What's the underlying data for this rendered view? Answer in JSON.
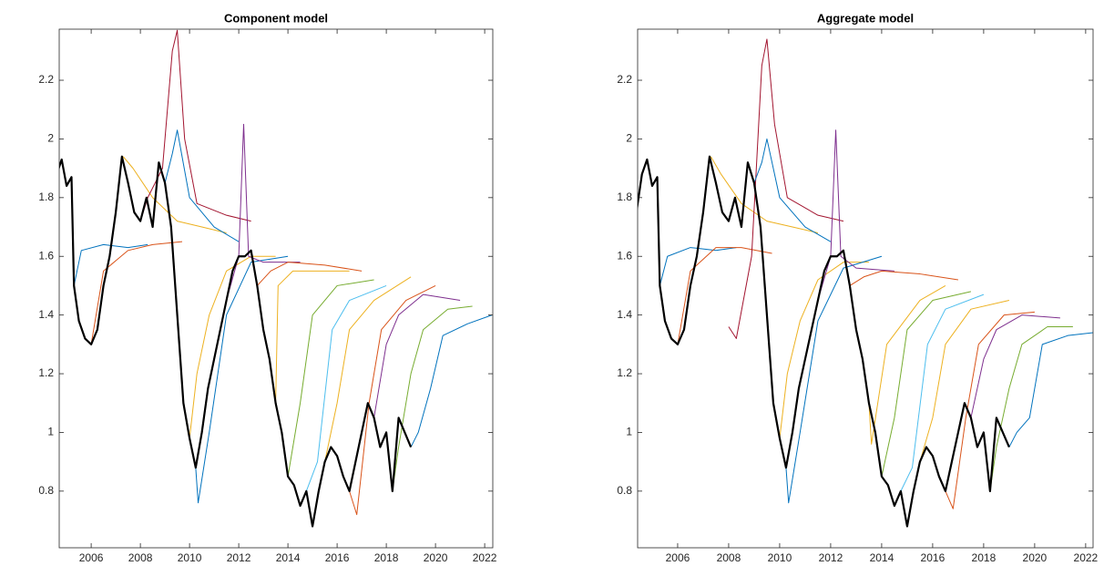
{
  "chart_data": [
    {
      "type": "line",
      "title": "Component model",
      "xlim": [
        2004.7,
        2022.33
      ],
      "ylim": [
        0.607,
        2.374
      ],
      "xticks": [
        2006,
        2008,
        2010,
        2012,
        2014,
        2016,
        2018,
        2020,
        2022
      ],
      "yticks": [
        0.8,
        1,
        1.2,
        1.4,
        1.6,
        1.8,
        2,
        2.2
      ],
      "series": [
        {
          "color": "#0072BD",
          "x": [
            2005.3,
            2005.6,
            2006.5,
            2007.5,
            2008.3
          ],
          "values": [
            1.5,
            1.62,
            1.64,
            1.63,
            1.64
          ]
        },
        {
          "color": "#D95319",
          "x": [
            2006.0,
            2006.5,
            2007.5,
            2008.5,
            2009.7
          ],
          "values": [
            1.3,
            1.55,
            1.62,
            1.64,
            1.65
          ]
        },
        {
          "color": "#EDB120",
          "x": [
            2007.3,
            2007.7,
            2008.5,
            2009.5,
            2010.5,
            2011.5
          ],
          "values": [
            1.94,
            1.9,
            1.8,
            1.72,
            1.7,
            1.68
          ]
        },
        {
          "color": "#A2142F",
          "x": [
            2008.0,
            2008.3,
            2008.9,
            2009.3,
            2009.5,
            2009.8,
            2010.3,
            2011.5,
            2012.5
          ],
          "values": [
            1.72,
            1.8,
            1.9,
            2.3,
            2.37,
            2.0,
            1.78,
            1.74,
            1.72
          ]
        },
        {
          "color": "#0072BD",
          "x": [
            2009.0,
            2009.3,
            2009.5,
            2010.0,
            2011.0,
            2012.0
          ],
          "values": [
            1.85,
            1.95,
            2.03,
            1.8,
            1.7,
            1.65
          ]
        },
        {
          "color": "#EDB120",
          "x": [
            2010.0,
            2010.3,
            2010.8,
            2011.5,
            2012.5,
            2013.5
          ],
          "values": [
            0.98,
            1.2,
            1.4,
            1.55,
            1.6,
            1.6
          ]
        },
        {
          "color": "#0072BD",
          "x": [
            2010.25,
            2010.35,
            2010.8,
            2011.5,
            2012.5,
            2014.0
          ],
          "values": [
            0.88,
            0.76,
            1.0,
            1.4,
            1.58,
            1.6
          ]
        },
        {
          "color": "#7E2F8E",
          "x": [
            2011.5,
            2012.0,
            2012.2,
            2012.4,
            2013.0,
            2014.5
          ],
          "values": [
            1.45,
            1.6,
            2.05,
            1.6,
            1.58,
            1.58
          ]
        },
        {
          "color": "#D95319",
          "x": [
            2012.75,
            2013.3,
            2014.0,
            2015.5,
            2017.0
          ],
          "values": [
            1.5,
            1.55,
            1.58,
            1.57,
            1.55
          ]
        },
        {
          "color": "#EDB120",
          "x": [
            2013.5,
            2013.6,
            2014.2,
            2015.5,
            2016.5
          ],
          "values": [
            1.1,
            1.5,
            1.55,
            1.55,
            1.55
          ]
        },
        {
          "color": "#77AC30",
          "x": [
            2014.0,
            2014.5,
            2015.0,
            2016.0,
            2017.5
          ],
          "values": [
            0.85,
            1.1,
            1.4,
            1.5,
            1.52
          ]
        },
        {
          "color": "#4DBEEE",
          "x": [
            2014.75,
            2015.2,
            2015.8,
            2016.5,
            2018.0
          ],
          "values": [
            0.8,
            0.9,
            1.35,
            1.45,
            1.5
          ]
        },
        {
          "color": "#EDB120",
          "x": [
            2015.5,
            2016.0,
            2016.5,
            2017.5,
            2019.0
          ],
          "values": [
            0.9,
            1.1,
            1.35,
            1.45,
            1.53
          ]
        },
        {
          "color": "#D95319",
          "x": [
            2016.5,
            2016.8,
            2017.3,
            2017.8,
            2018.8,
            2020.0
          ],
          "values": [
            0.8,
            0.72,
            1.1,
            1.35,
            1.45,
            1.5
          ]
        },
        {
          "color": "#7E2F8E",
          "x": [
            2017.5,
            2018.0,
            2018.5,
            2019.5,
            2021.0
          ],
          "values": [
            1.05,
            1.3,
            1.4,
            1.47,
            1.45
          ]
        },
        {
          "color": "#77AC30",
          "x": [
            2018.25,
            2018.5,
            2019.0,
            2019.5,
            2020.5,
            2021.5
          ],
          "values": [
            0.8,
            0.95,
            1.2,
            1.35,
            1.42,
            1.43
          ]
        },
        {
          "color": "#0072BD",
          "x": [
            2019.0,
            2019.3,
            2019.8,
            2020.3,
            2021.3,
            2022.3
          ],
          "values": [
            0.95,
            1.0,
            1.15,
            1.33,
            1.37,
            1.4
          ]
        },
        {
          "color": "#000000",
          "x": [
            2004.3,
            2004.4,
            2004.6,
            2004.8,
            2005.0,
            2005.2,
            2005.3,
            2005.5,
            2005.75,
            2006.0,
            2006.25,
            2006.5,
            2006.75,
            2007.0,
            2007.25,
            2007.5,
            2007.75,
            2008.0,
            2008.25,
            2008.5,
            2008.75,
            2009.0,
            2009.25,
            2009.5,
            2009.75,
            2010.0,
            2010.25,
            2010.5,
            2010.75,
            2011.0,
            2011.25,
            2011.5,
            2011.75,
            2012.0,
            2012.25,
            2012.5,
            2012.75,
            2013.0,
            2013.25,
            2013.5,
            2013.75,
            2014.0,
            2014.25,
            2014.5,
            2014.75,
            2015.0,
            2015.25,
            2015.5,
            2015.75,
            2016.0,
            2016.25,
            2016.5,
            2016.75,
            2017.0,
            2017.25,
            2017.5,
            2017.75,
            2018.0,
            2018.25,
            2018.5,
            2018.75,
            2019.0
          ],
          "values": [
            1.86,
            1.76,
            1.88,
            1.93,
            1.84,
            1.87,
            1.5,
            1.38,
            1.32,
            1.3,
            1.35,
            1.5,
            1.6,
            1.75,
            1.94,
            1.85,
            1.75,
            1.72,
            1.8,
            1.7,
            1.92,
            1.85,
            1.7,
            1.4,
            1.1,
            0.98,
            0.88,
            1.0,
            1.15,
            1.25,
            1.35,
            1.45,
            1.55,
            1.6,
            1.6,
            1.62,
            1.5,
            1.35,
            1.25,
            1.1,
            1.0,
            0.85,
            0.82,
            0.75,
            0.8,
            0.68,
            0.8,
            0.9,
            0.95,
            0.92,
            0.85,
            0.8,
            0.9,
            1.0,
            1.1,
            1.05,
            0.95,
            1.0,
            0.8,
            1.05,
            1.0,
            0.95
          ]
        }
      ]
    },
    {
      "type": "line",
      "title": "Aggregate model",
      "xlim": [
        2004.43,
        2022.29
      ],
      "ylim": [
        0.607,
        2.374
      ],
      "xticks": [
        2006,
        2008,
        2010,
        2012,
        2014,
        2016,
        2018,
        2020,
        2022
      ],
      "yticks": [
        0.8,
        1,
        1.2,
        1.4,
        1.6,
        1.8,
        2,
        2.2
      ],
      "series": [
        {
          "color": "#0072BD",
          "x": [
            2005.3,
            2005.6,
            2006.5,
            2007.5,
            2008.3
          ],
          "values": [
            1.5,
            1.6,
            1.63,
            1.62,
            1.63
          ]
        },
        {
          "color": "#D95319",
          "x": [
            2006.0,
            2006.5,
            2007.5,
            2008.5,
            2009.7
          ],
          "values": [
            1.3,
            1.55,
            1.63,
            1.63,
            1.61
          ]
        },
        {
          "color": "#EDB120",
          "x": [
            2007.3,
            2007.7,
            2008.5,
            2009.5,
            2010.5,
            2011.5
          ],
          "values": [
            1.94,
            1.88,
            1.78,
            1.72,
            1.7,
            1.68
          ]
        },
        {
          "color": "#A2142F",
          "x": [
            2008.0,
            2008.3,
            2008.9,
            2009.3,
            2009.5,
            2009.8,
            2010.3,
            2011.5,
            2012.5
          ],
          "values": [
            1.36,
            1.32,
            1.6,
            2.25,
            2.34,
            2.05,
            1.8,
            1.74,
            1.72
          ]
        },
        {
          "color": "#0072BD",
          "x": [
            2009.0,
            2009.3,
            2009.5,
            2010.0,
            2011.0,
            2012.0
          ],
          "values": [
            1.85,
            1.92,
            2.0,
            1.8,
            1.7,
            1.65
          ]
        },
        {
          "color": "#EDB120",
          "x": [
            2010.0,
            2010.3,
            2010.8,
            2011.5,
            2012.5,
            2013.5
          ],
          "values": [
            0.98,
            1.2,
            1.38,
            1.52,
            1.58,
            1.58
          ]
        },
        {
          "color": "#0072BD",
          "x": [
            2010.25,
            2010.35,
            2010.8,
            2011.5,
            2012.5,
            2014.0
          ],
          "values": [
            0.88,
            0.76,
            1.0,
            1.38,
            1.56,
            1.6
          ]
        },
        {
          "color": "#7E2F8E",
          "x": [
            2011.5,
            2012.0,
            2012.2,
            2012.4,
            2013.0,
            2014.5
          ],
          "values": [
            1.45,
            1.6,
            2.03,
            1.6,
            1.56,
            1.55
          ]
        },
        {
          "color": "#D95319",
          "x": [
            2012.75,
            2013.3,
            2014.0,
            2015.5,
            2017.0
          ],
          "values": [
            1.5,
            1.53,
            1.55,
            1.54,
            1.52
          ]
        },
        {
          "color": "#EDB120",
          "x": [
            2013.5,
            2013.6,
            2014.2,
            2015.5,
            2016.5
          ],
          "values": [
            1.1,
            0.96,
            1.3,
            1.45,
            1.5
          ]
        },
        {
          "color": "#77AC30",
          "x": [
            2014.0,
            2014.5,
            2015.0,
            2016.0,
            2017.5
          ],
          "values": [
            0.85,
            1.05,
            1.35,
            1.45,
            1.48
          ]
        },
        {
          "color": "#4DBEEE",
          "x": [
            2014.75,
            2015.2,
            2015.8,
            2016.5,
            2018.0
          ],
          "values": [
            0.8,
            0.88,
            1.3,
            1.42,
            1.47
          ]
        },
        {
          "color": "#EDB120",
          "x": [
            2015.5,
            2016.0,
            2016.5,
            2017.5,
            2019.0
          ],
          "values": [
            0.9,
            1.05,
            1.3,
            1.42,
            1.45
          ]
        },
        {
          "color": "#D95319",
          "x": [
            2016.5,
            2016.8,
            2017.3,
            2017.8,
            2018.8,
            2020.0
          ],
          "values": [
            0.8,
            0.74,
            1.05,
            1.3,
            1.4,
            1.41
          ]
        },
        {
          "color": "#7E2F8E",
          "x": [
            2017.5,
            2018.0,
            2018.5,
            2019.5,
            2021.0
          ],
          "values": [
            1.05,
            1.25,
            1.35,
            1.4,
            1.39
          ]
        },
        {
          "color": "#77AC30",
          "x": [
            2018.25,
            2018.5,
            2019.0,
            2019.5,
            2020.5,
            2021.5
          ],
          "values": [
            0.8,
            0.95,
            1.15,
            1.3,
            1.36,
            1.36
          ]
        },
        {
          "color": "#0072BD",
          "x": [
            2019.0,
            2019.3,
            2019.8,
            2020.3,
            2021.3,
            2022.3
          ],
          "values": [
            0.95,
            1.0,
            1.05,
            1.3,
            1.33,
            1.34
          ]
        },
        {
          "color": "#000000",
          "x": [
            2004.3,
            2004.4,
            2004.6,
            2004.8,
            2005.0,
            2005.2,
            2005.3,
            2005.5,
            2005.75,
            2006.0,
            2006.25,
            2006.5,
            2006.75,
            2007.0,
            2007.25,
            2007.5,
            2007.75,
            2008.0,
            2008.25,
            2008.5,
            2008.75,
            2009.0,
            2009.25,
            2009.5,
            2009.75,
            2010.0,
            2010.25,
            2010.5,
            2010.75,
            2011.0,
            2011.25,
            2011.5,
            2011.75,
            2012.0,
            2012.25,
            2012.5,
            2012.75,
            2013.0,
            2013.25,
            2013.5,
            2013.75,
            2014.0,
            2014.25,
            2014.5,
            2014.75,
            2015.0,
            2015.25,
            2015.5,
            2015.75,
            2016.0,
            2016.25,
            2016.5,
            2016.75,
            2017.0,
            2017.25,
            2017.5,
            2017.75,
            2018.0,
            2018.25,
            2018.5,
            2018.75,
            2019.0
          ],
          "values": [
            1.86,
            1.76,
            1.88,
            1.93,
            1.84,
            1.87,
            1.5,
            1.38,
            1.32,
            1.3,
            1.35,
            1.5,
            1.6,
            1.75,
            1.94,
            1.85,
            1.75,
            1.72,
            1.8,
            1.7,
            1.92,
            1.85,
            1.7,
            1.4,
            1.1,
            0.98,
            0.88,
            1.0,
            1.15,
            1.25,
            1.35,
            1.45,
            1.55,
            1.6,
            1.6,
            1.62,
            1.5,
            1.35,
            1.25,
            1.1,
            1.0,
            0.85,
            0.82,
            0.75,
            0.8,
            0.68,
            0.8,
            0.9,
            0.95,
            0.92,
            0.85,
            0.8,
            0.9,
            1.0,
            1.1,
            1.05,
            0.95,
            1.0,
            0.8,
            1.05,
            1.0,
            0.95
          ]
        }
      ]
    }
  ]
}
